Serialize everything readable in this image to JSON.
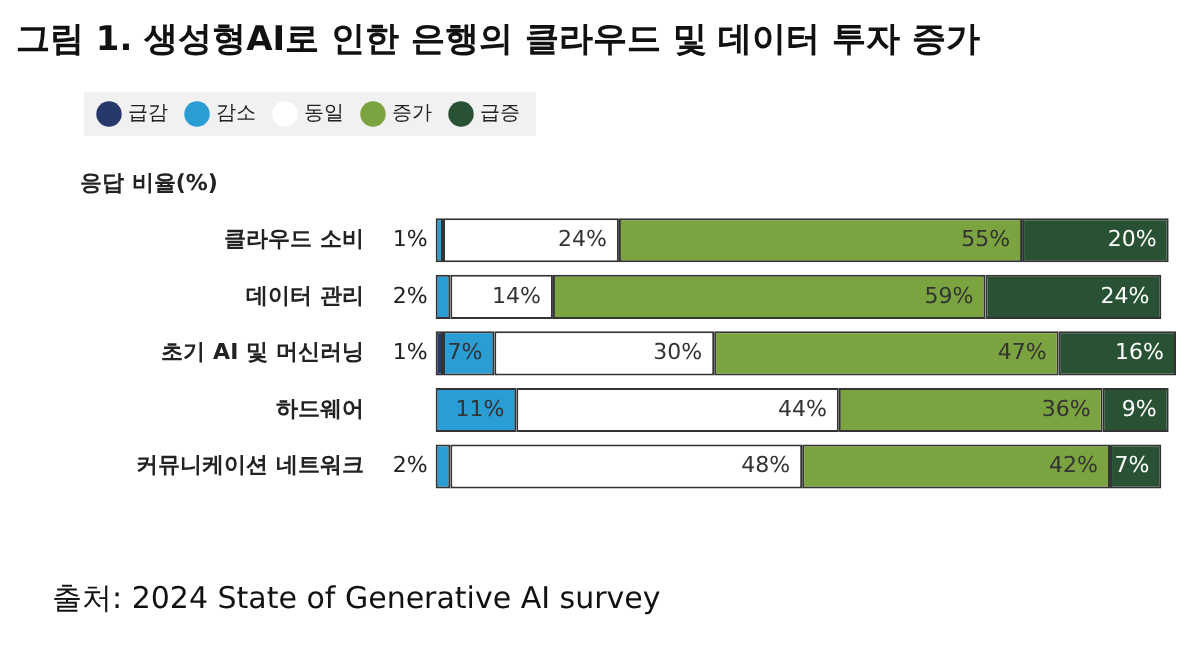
{
  "chart_data": {
    "type": "bar",
    "orientation": "horizontal",
    "stacked": true,
    "title": "그림 1. 생성형AI로 인한 은행의 클라우드 및 데이터 투자 증가",
    "ylabel": "응답 비율(%)",
    "legend": "top left",
    "categories": [
      "클라우드 소비",
      "데이터 관리",
      "초기 AI 및 머신러닝",
      "하드웨어",
      "커뮤니케이션 네트워크"
    ],
    "series": [
      {
        "name": "급감",
        "color": "#27386a",
        "values": [
          null,
          null,
          1,
          null,
          null
        ],
        "value_labels": [
          null,
          null,
          "1%",
          null,
          null
        ]
      },
      {
        "name": "감소",
        "color": "#2a9dd5",
        "values": [
          1,
          2,
          7,
          11,
          2
        ],
        "value_labels": [
          "1%",
          "2%",
          "7%",
          "11%",
          "2%"
        ]
      },
      {
        "name": "동일",
        "color": "#ffffff",
        "values": [
          24,
          14,
          30,
          44,
          48
        ],
        "value_labels": [
          "24%",
          "14%",
          "30%",
          "44%",
          "48%"
        ]
      },
      {
        "name": "증가",
        "color": "#7ba33f",
        "values": [
          55,
          59,
          47,
          36,
          42
        ],
        "value_labels": [
          "55%",
          "59%",
          "47%",
          "36%",
          "42%"
        ]
      },
      {
        "name": "급증",
        "color": "#285233",
        "values": [
          20,
          24,
          16,
          9,
          7
        ],
        "value_labels": [
          "20%",
          "24%",
          "16%",
          "9%",
          "7%"
        ]
      }
    ],
    "annotations": [
      "출처: 2024 State of Generative AI survey"
    ]
  }
}
